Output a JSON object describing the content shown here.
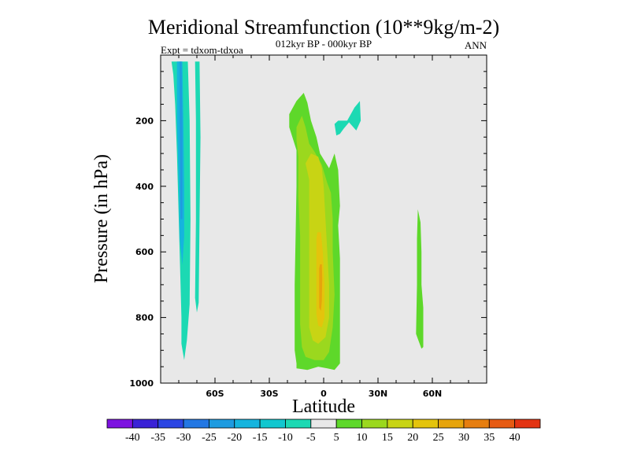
{
  "chart_data": {
    "type": "heatmap",
    "title": "Meridional Streamfunction (10**9kg/m-2)",
    "subtitle": "012kyr BP - 000kyr BP",
    "left_label": "Expt = tdxom-tdxoa",
    "right_label": "ANN",
    "xlabel": "Latitude",
    "ylabel": "Pressure (in hPa)",
    "xlim": [
      -90,
      90
    ],
    "ylim": [
      1000,
      0
    ],
    "x_ticks": [
      {
        "value": -60,
        "label": "60S"
      },
      {
        "value": -30,
        "label": "30S"
      },
      {
        "value": 0,
        "label": "0"
      },
      {
        "value": 30,
        "label": "30N"
      },
      {
        "value": 60,
        "label": "60N"
      }
    ],
    "y_ticks": [
      {
        "value": 200,
        "label": "200"
      },
      {
        "value": 400,
        "label": "400"
      },
      {
        "value": 600,
        "label": "600"
      },
      {
        "value": 800,
        "label": "800"
      },
      {
        "value": 1000,
        "label": "1000"
      }
    ],
    "background_color": "#e8e8e8",
    "colorbar": {
      "levels": [
        "-40",
        "-35",
        "-30",
        "-25",
        "-20",
        "-15",
        "-10",
        "-5",
        "5",
        "10",
        "15",
        "20",
        "25",
        "30",
        "35",
        "40"
      ],
      "colors": [
        "#7d12e0",
        "#3a22d6",
        "#2b45e3",
        "#2377e3",
        "#1e9be0",
        "#15b4de",
        "#11c7cf",
        "#1cd9b3",
        "#e8e8e8",
        "#5ed82a",
        "#9bd81e",
        "#c8d414",
        "#e4c40c",
        "#e6a40c",
        "#e67e10",
        "#e65a12",
        "#e33312"
      ]
    },
    "regions": [
      {
        "value": -10,
        "color": "#1cd9b3",
        "polygon": [
          [
            -88,
            20
          ],
          [
            -84,
            20
          ],
          [
            -83,
            60
          ],
          [
            -82,
            150
          ],
          [
            -81,
            300
          ],
          [
            -80,
            500
          ],
          [
            -78.5,
            800
          ],
          [
            -78.5,
            880
          ],
          [
            -77,
            930
          ],
          [
            -75.5,
            870
          ],
          [
            -74,
            760
          ],
          [
            -73.5,
            500
          ],
          [
            -74,
            200
          ],
          [
            -75,
            20
          ],
          [
            -71,
            20
          ],
          [
            -70.5,
            200
          ],
          [
            -70.5,
            500
          ],
          [
            -71,
            740
          ],
          [
            -70,
            785
          ],
          [
            -69,
            755
          ],
          [
            -68.5,
            500
          ],
          [
            -68,
            250
          ],
          [
            -68.5,
            20
          ],
          [
            -88,
            20
          ]
        ]
      },
      {
        "value": -15,
        "color": "#15b4de",
        "polygon": [
          [
            -81,
            20
          ],
          [
            -78,
            20
          ],
          [
            -77.5,
            200
          ],
          [
            -77,
            400
          ],
          [
            -77,
            550
          ],
          [
            -78,
            640
          ],
          [
            -79.5,
            560
          ],
          [
            -80,
            400
          ],
          [
            -81,
            200
          ],
          [
            -81,
            20
          ]
        ]
      },
      {
        "value": -20,
        "color": "#1e9be0",
        "polygon": [
          [
            -79.5,
            20
          ],
          [
            -78.5,
            20
          ],
          [
            -78,
            200
          ],
          [
            -78,
            500
          ],
          [
            -79,
            500
          ],
          [
            -79.5,
            200
          ],
          [
            -79.5,
            20
          ]
        ]
      },
      {
        "value": -10,
        "color": "#1cd9b3",
        "polygon": [
          [
            6,
            210
          ],
          [
            8,
            200
          ],
          [
            13,
            200
          ],
          [
            17,
            160
          ],
          [
            20,
            140
          ],
          [
            20.5,
            200
          ],
          [
            18,
            230
          ],
          [
            14,
            205
          ],
          [
            11,
            225
          ],
          [
            9,
            240
          ],
          [
            7,
            245
          ],
          [
            6,
            210
          ]
        ]
      },
      {
        "value": 5,
        "color": "#5ed82a",
        "polygon": [
          [
            -15,
            290
          ],
          [
            -19,
            220
          ],
          [
            -19,
            180
          ],
          [
            -15,
            140
          ],
          [
            -11,
            115
          ],
          [
            -9,
            145
          ],
          [
            -7,
            200
          ],
          [
            -4,
            250
          ],
          [
            -2,
            300
          ],
          [
            3,
            345
          ],
          [
            6,
            300
          ],
          [
            8,
            350
          ],
          [
            9,
            460
          ],
          [
            8,
            520
          ],
          [
            9,
            620
          ],
          [
            9,
            760
          ],
          [
            9,
            840
          ],
          [
            9,
            940
          ],
          [
            6,
            960
          ],
          [
            2,
            955
          ],
          [
            -3,
            950
          ],
          [
            -9,
            960
          ],
          [
            -15,
            955
          ],
          [
            -15,
            940
          ],
          [
            -16,
            900
          ],
          [
            -16,
            820
          ],
          [
            -16,
            700
          ],
          [
            -15.5,
            550
          ],
          [
            -15,
            400
          ],
          [
            -15,
            290
          ]
        ]
      },
      {
        "value": 10,
        "color": "#9bd81e",
        "polygon": [
          [
            -14,
            310
          ],
          [
            -15,
            260
          ],
          [
            -15,
            220
          ],
          [
            -12,
            185
          ],
          [
            -10,
            220
          ],
          [
            -8,
            270
          ],
          [
            -5,
            295
          ],
          [
            -1,
            335
          ],
          [
            2,
            390
          ],
          [
            4,
            420
          ],
          [
            5,
            500
          ],
          [
            5,
            600
          ],
          [
            6,
            730
          ],
          [
            5,
            830
          ],
          [
            3,
            905
          ],
          [
            0,
            930
          ],
          [
            -5,
            930
          ],
          [
            -10,
            920
          ],
          [
            -12,
            890
          ],
          [
            -13,
            820
          ],
          [
            -13,
            700
          ],
          [
            -13,
            550
          ],
          [
            -14,
            430
          ],
          [
            -14,
            310
          ]
        ]
      },
      {
        "value": 15,
        "color": "#c8d414",
        "polygon": [
          [
            -8,
            380
          ],
          [
            -10,
            330
          ],
          [
            -7,
            300
          ],
          [
            -3,
            310
          ],
          [
            -1,
            345
          ],
          [
            0,
            400
          ],
          [
            1,
            500
          ],
          [
            2,
            600
          ],
          [
            3,
            700
          ],
          [
            3,
            800
          ],
          [
            1,
            860
          ],
          [
            -3,
            880
          ],
          [
            -6,
            870
          ],
          [
            -8,
            830
          ],
          [
            -8,
            730
          ],
          [
            -8,
            600
          ],
          [
            -8,
            500
          ],
          [
            -8,
            380
          ]
        ]
      },
      {
        "value": 20,
        "color": "#e4c40c",
        "polygon": [
          [
            -4,
            560
          ],
          [
            -3.5,
            540
          ],
          [
            -1.5,
            540
          ],
          [
            -0.5,
            600
          ],
          [
            0,
            650
          ],
          [
            0.5,
            700
          ],
          [
            0.5,
            800
          ],
          [
            -1,
            830
          ],
          [
            -3,
            825
          ],
          [
            -4,
            790
          ],
          [
            -4,
            700
          ],
          [
            -4,
            600
          ],
          [
            -4,
            560
          ]
        ]
      },
      {
        "value": 25,
        "color": "#e6a40c",
        "polygon": [
          [
            -2.5,
            650
          ],
          [
            -2,
            638
          ],
          [
            -1,
            638
          ],
          [
            -0.8,
            680
          ],
          [
            -1,
            750
          ],
          [
            -1.5,
            780
          ],
          [
            -2.5,
            770
          ],
          [
            -2.5,
            700
          ],
          [
            -2.5,
            650
          ]
        ]
      },
      {
        "value": 5,
        "color": "#5ed82a",
        "polygon": [
          [
            51,
            850
          ],
          [
            51.5,
            700
          ],
          [
            51.5,
            560
          ],
          [
            52,
            470
          ],
          [
            53.5,
            510
          ],
          [
            54,
            600
          ],
          [
            54,
            700
          ],
          [
            55,
            770
          ],
          [
            55,
            890
          ],
          [
            54,
            895
          ],
          [
            52,
            865
          ],
          [
            51,
            850
          ]
        ]
      }
    ]
  }
}
